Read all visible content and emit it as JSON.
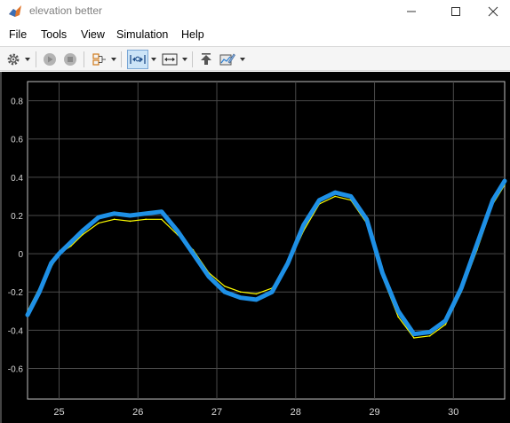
{
  "window": {
    "title": "elevation  better",
    "minimize_icon": "minimize-icon",
    "maximize_icon": "maximize-icon",
    "close_icon": "close-icon"
  },
  "menu": {
    "items": [
      "File",
      "Tools",
      "View",
      "Simulation",
      "Help"
    ]
  },
  "toolbar": {
    "icons": [
      "settings-gear-icon",
      "run-icon",
      "stop-icon",
      "signal-selector-icon",
      "zoom-x-icon",
      "autoscale-icon",
      "highlight-simulink-block-icon",
      "edit-style-icon"
    ]
  },
  "colors": {
    "plot_background": "#000000",
    "grid": "#4a4a4a",
    "tick_text": "#d9d9d9",
    "signal_primary": "#1e90e6",
    "signal_reference": "#ffff00"
  },
  "chart_data": {
    "type": "line",
    "title": "",
    "xlabel": "",
    "ylabel": "",
    "xlim": [
      24.6,
      30.65
    ],
    "ylim": [
      -0.76,
      0.9
    ],
    "xticks": [
      25,
      26,
      27,
      28,
      29,
      30
    ],
    "yticks": [
      -0.6,
      -0.4,
      -0.2,
      0,
      0.2,
      0.4,
      0.6,
      0.8
    ],
    "xtick_labels": [
      "25",
      "26",
      "27",
      "28",
      "29",
      "30"
    ],
    "ytick_labels": [
      "-0.6",
      "-0.4",
      "-0.2",
      "0",
      "0.2",
      "0.4",
      "0.6",
      "0.8"
    ],
    "grid": true,
    "series": [
      {
        "color": "#1e90e6",
        "x": [
          24.6,
          24.75,
          24.9,
          25.0,
          25.15,
          25.3,
          25.5,
          25.7,
          25.9,
          26.1,
          26.3,
          26.5,
          26.7,
          26.9,
          27.1,
          27.3,
          27.5,
          27.7,
          27.9,
          28.1,
          28.3,
          28.5,
          28.7,
          28.9,
          29.1,
          29.3,
          29.5,
          29.7,
          29.9,
          30.1,
          30.3,
          30.5,
          30.65
        ],
        "y": [
          -0.32,
          -0.2,
          -0.05,
          0.0,
          0.06,
          0.12,
          0.19,
          0.21,
          0.2,
          0.21,
          0.22,
          0.12,
          0.0,
          -0.12,
          -0.2,
          -0.23,
          -0.24,
          -0.2,
          -0.05,
          0.15,
          0.28,
          0.32,
          0.3,
          0.18,
          -0.1,
          -0.3,
          -0.42,
          -0.41,
          -0.35,
          -0.18,
          0.05,
          0.28,
          0.38
        ]
      },
      {
        "color": "#ffff00",
        "x": [
          24.6,
          24.75,
          24.9,
          25.0,
          25.15,
          25.3,
          25.5,
          25.7,
          25.9,
          26.1,
          26.3,
          26.5,
          26.7,
          26.9,
          27.1,
          27.3,
          27.5,
          27.7,
          27.9,
          28.1,
          28.3,
          28.5,
          28.7,
          28.9,
          29.1,
          29.3,
          29.5,
          29.7,
          29.9,
          30.1,
          30.3,
          30.5,
          30.65
        ],
        "y": [
          -0.3,
          -0.18,
          -0.07,
          0.0,
          0.04,
          0.1,
          0.16,
          0.18,
          0.17,
          0.18,
          0.18,
          0.1,
          0.02,
          -0.1,
          -0.17,
          -0.2,
          -0.21,
          -0.18,
          -0.06,
          0.12,
          0.26,
          0.3,
          0.28,
          0.16,
          -0.12,
          -0.33,
          -0.44,
          -0.43,
          -0.37,
          -0.2,
          0.02,
          0.26,
          0.36
        ]
      }
    ]
  }
}
